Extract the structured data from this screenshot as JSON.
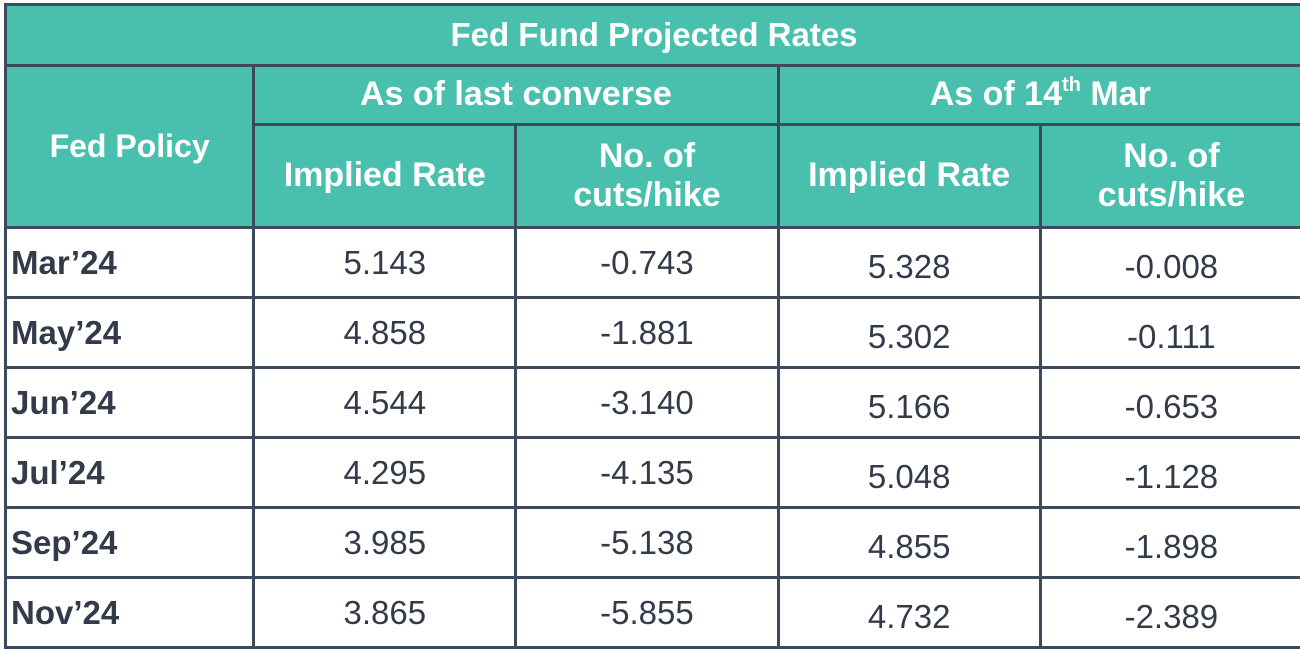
{
  "table": {
    "title": "Fed Fund Projected Rates",
    "row_header": "Fed Policy",
    "groups": [
      {
        "label_prefix": "As of last converse",
        "label_sup": "",
        "label_suffix": ""
      },
      {
        "label_prefix": "As of 14",
        "label_sup": "th",
        "label_suffix": " Mar"
      }
    ],
    "subheaders": {
      "implied_rate": "Implied Rate",
      "cuts_line1": "No. of",
      "cuts_line2": "cuts/hike"
    },
    "rows": [
      {
        "label": "Mar’24",
        "last_rate": "5.143",
        "last_cuts": "-0.743",
        "mar_rate": "5.328",
        "mar_cuts": "-0.008"
      },
      {
        "label": "May’24",
        "last_rate": "4.858",
        "last_cuts": "-1.881",
        "mar_rate": "5.302",
        "mar_cuts": "-0.111"
      },
      {
        "label": "Jun’24",
        "last_rate": "4.544",
        "last_cuts": "-3.140",
        "mar_rate": "5.166",
        "mar_cuts": "-0.653"
      },
      {
        "label": "Jul’24",
        "last_rate": "4.295",
        "last_cuts": "-4.135",
        "mar_rate": "5.048",
        "mar_cuts": "-1.128"
      },
      {
        "label": "Sep’24",
        "last_rate": "3.985",
        "last_cuts": "-5.138",
        "mar_rate": "4.855",
        "mar_cuts": "-1.898"
      },
      {
        "label": "Nov’24",
        "last_rate": "3.865",
        "last_cuts": "-5.855",
        "mar_rate": "4.732",
        "mar_cuts": "-2.389"
      }
    ]
  },
  "colors": {
    "header_bg": "#49c0ad",
    "border": "#3b4a5e",
    "header_text": "#ffffff",
    "body_text": "#333b4a"
  }
}
